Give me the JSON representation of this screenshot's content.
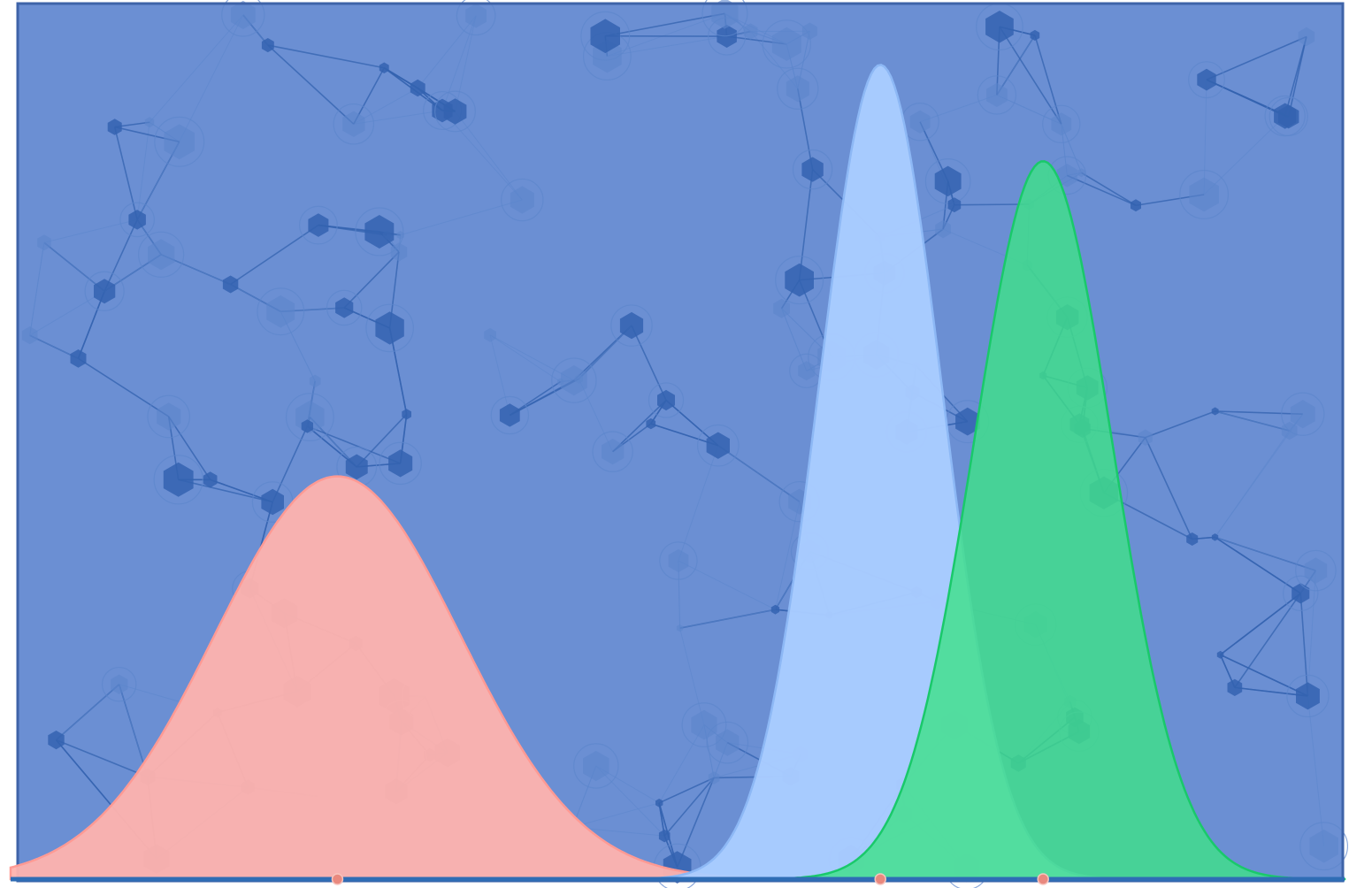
{
  "colors": {
    "background": "#6b8fd3",
    "frame": "#3e63a8",
    "network_dark": "#3463b0",
    "network_light": "#5c86cc",
    "baseline": "#2f6db5"
  },
  "chart_data": {
    "type": "area",
    "title": "",
    "xlabel": "",
    "ylabel": "",
    "xlim": [
      0,
      100
    ],
    "ylim": [
      0,
      1
    ],
    "grid": false,
    "legend": "none",
    "background_motif": "molecular-network",
    "series": [
      {
        "mean": 24.5,
        "sd": 9.2,
        "peak": 0.46,
        "fill": "#ffb3ae",
        "stroke": "#ff9a94",
        "opacity": 0.95
      },
      {
        "mean": 65.2,
        "sd": 4.6,
        "peak": 0.93,
        "fill": "#a9ccff",
        "stroke": "#8db8f5",
        "opacity": 0.97
      },
      {
        "mean": 77.4,
        "sd": 5.2,
        "peak": 0.82,
        "fill": "#3fe08a",
        "stroke": "#19c96a",
        "opacity": 0.82
      }
    ],
    "markers": [
      {
        "x": 24.5,
        "color": "#e9897f"
      },
      {
        "x": 65.2,
        "color": "#e9897f"
      },
      {
        "x": 77.4,
        "color": "#e9897f"
      }
    ]
  }
}
